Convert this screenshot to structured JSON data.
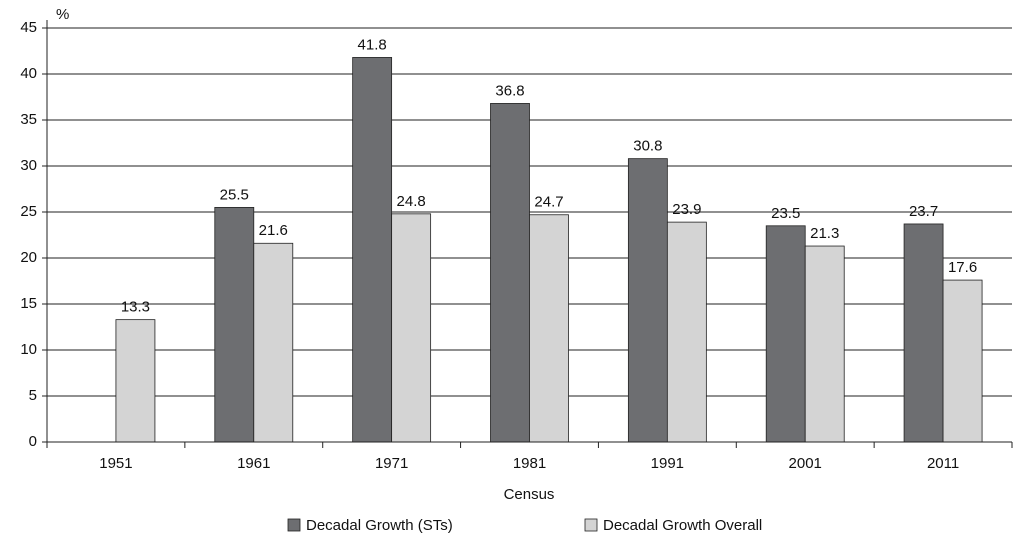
{
  "chart_data": {
    "type": "bar",
    "y_label": "%",
    "x_label": "Census",
    "categories": [
      "1951",
      "1961",
      "1971",
      "1981",
      "1991",
      "2001",
      "2011"
    ],
    "series": [
      {
        "name": "Decadal Growth (STs)",
        "color": "#6d6e71",
        "values": [
          null,
          25.5,
          41.8,
          36.8,
          30.8,
          23.5,
          23.7
        ]
      },
      {
        "name": "Decadal Growth Overall",
        "color": "#d4d4d4",
        "values": [
          13.3,
          21.6,
          24.8,
          24.7,
          23.9,
          21.3,
          17.6
        ]
      }
    ],
    "ylim": [
      0,
      45
    ],
    "yticks": [
      0,
      5,
      10,
      15,
      20,
      25,
      30,
      35,
      40,
      45
    ],
    "grid": true
  }
}
